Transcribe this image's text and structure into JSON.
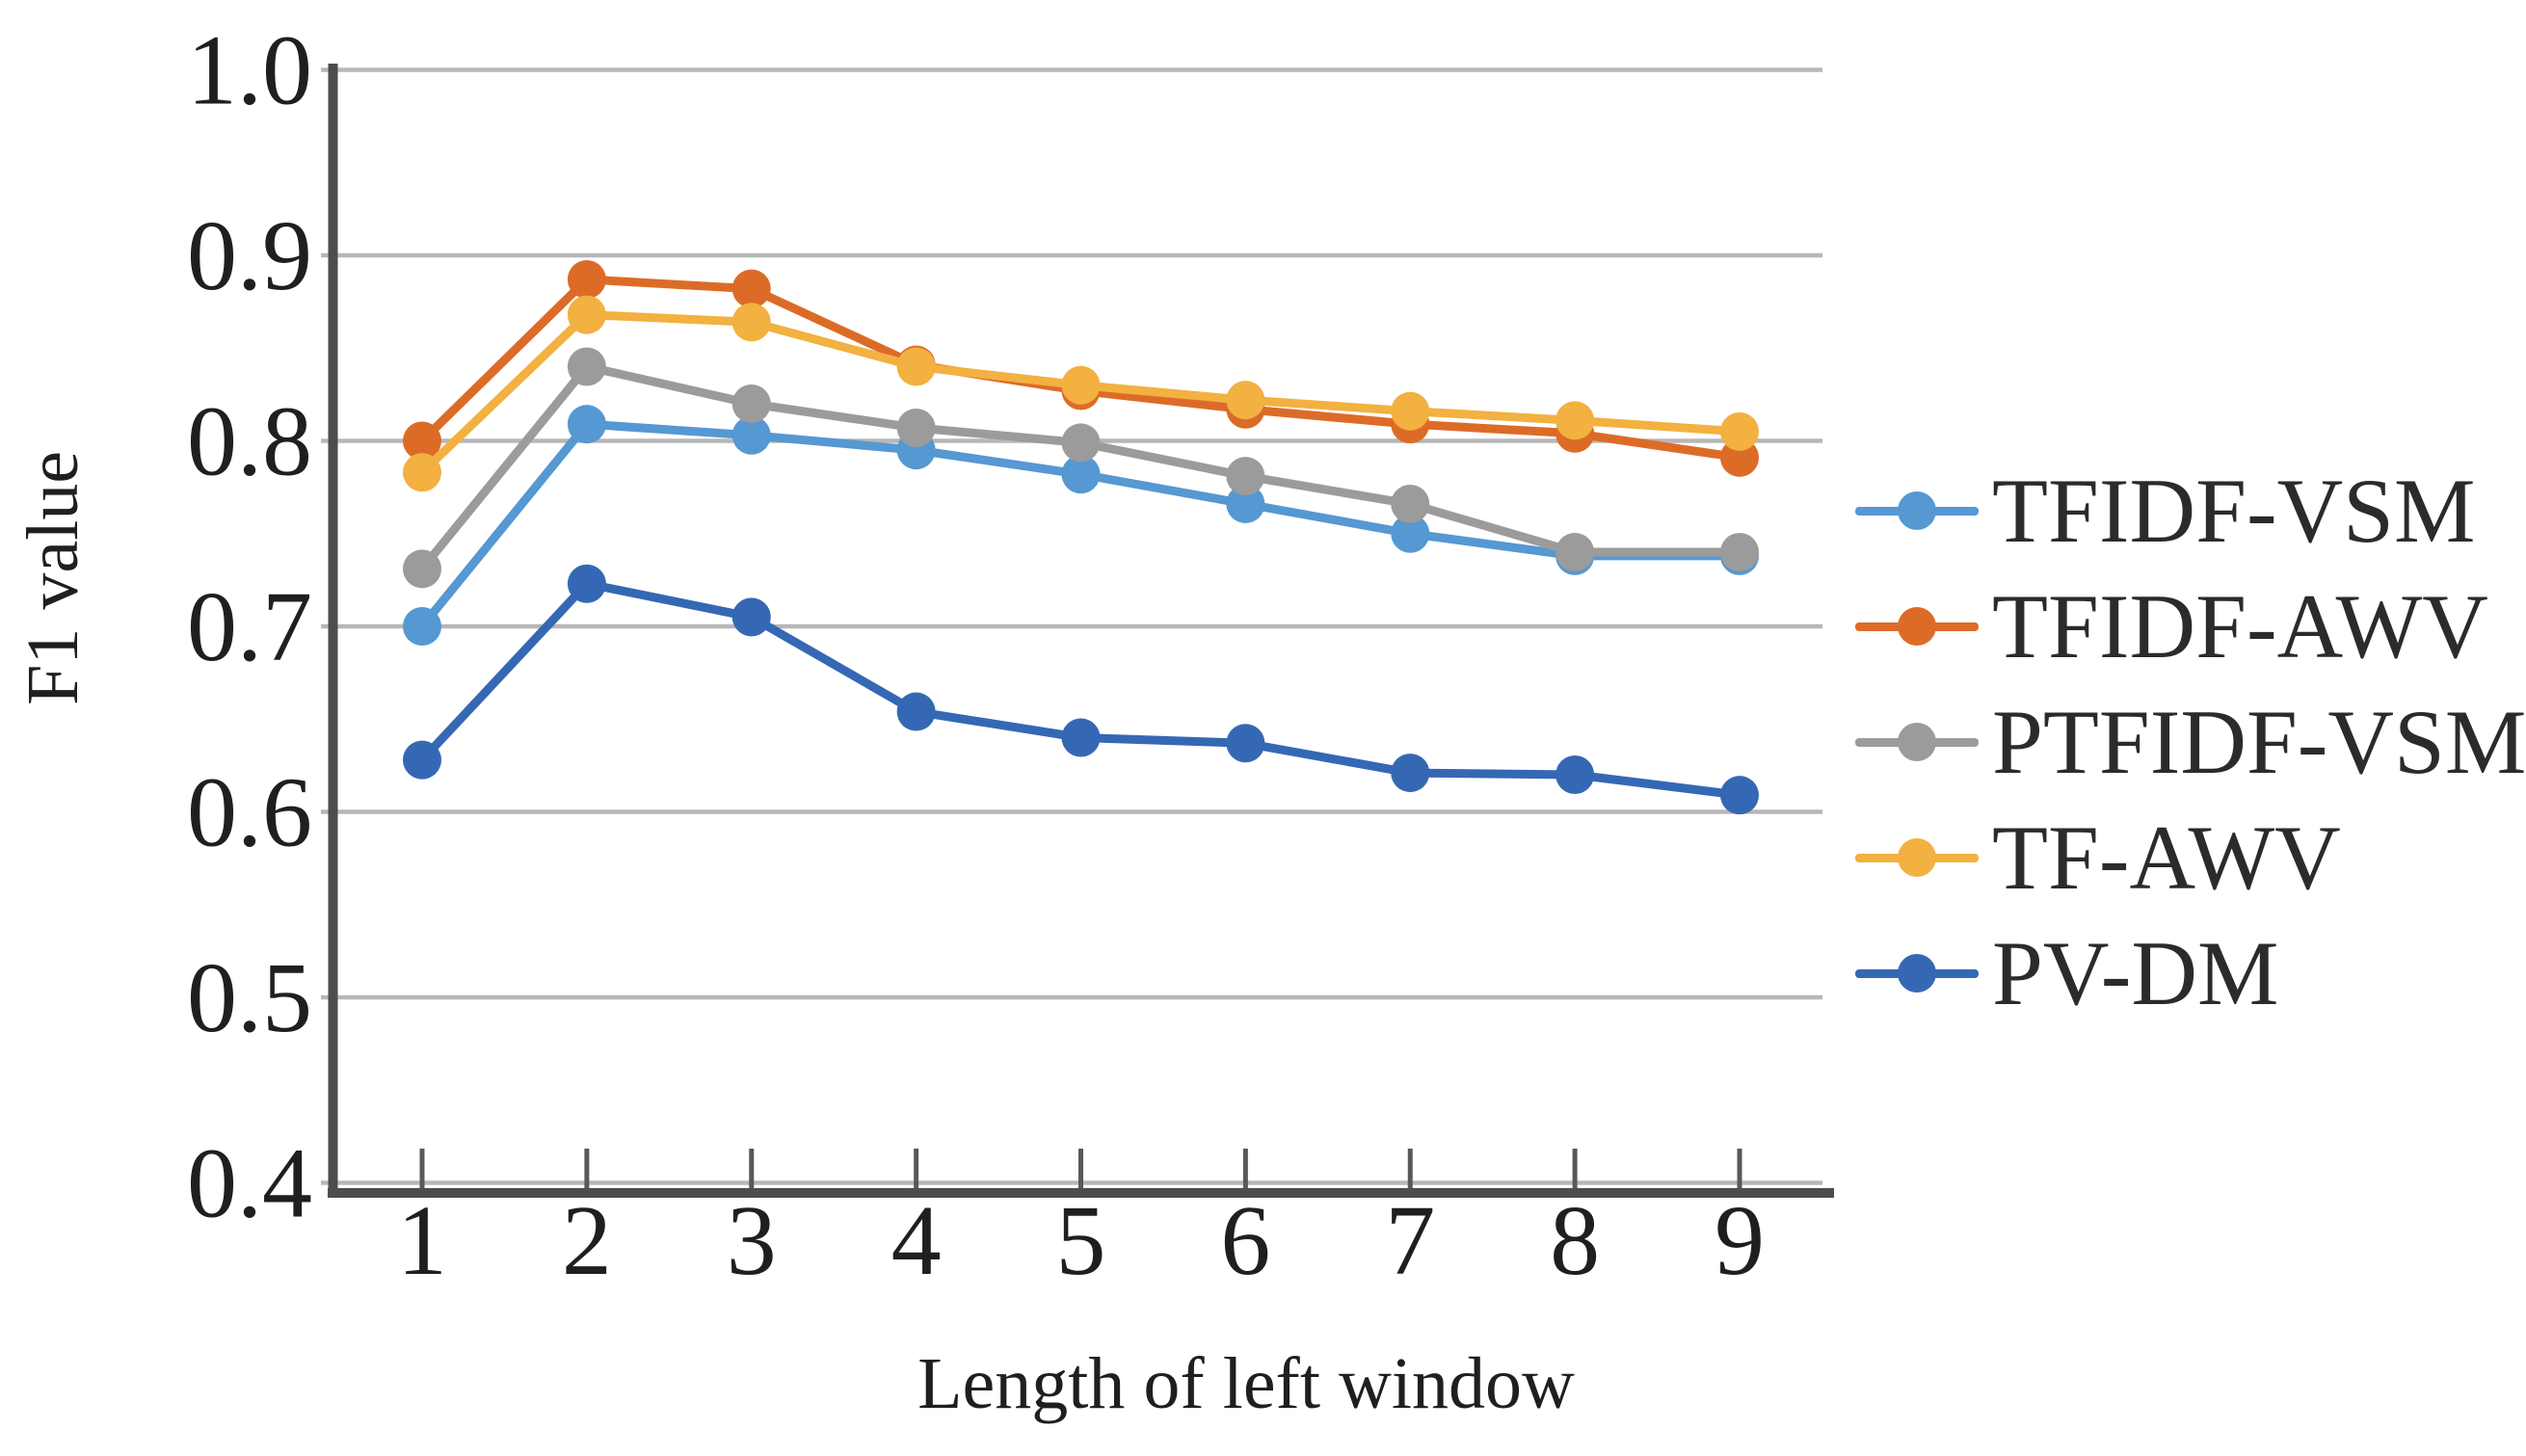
{
  "chart_data": {
    "type": "line",
    "title": "",
    "xlabel": "Length of left window",
    "ylabel": "F1 value",
    "x": [
      1,
      2,
      3,
      4,
      5,
      6,
      7,
      8,
      9
    ],
    "x_tick_labels": [
      "1",
      "2",
      "3",
      "4",
      "5",
      "6",
      "7",
      "8",
      "9"
    ],
    "y_tick_labels": [
      "0.4",
      "0.5",
      "0.6",
      "0.7",
      "0.8",
      "0.9",
      "1.0"
    ],
    "y_ticks": [
      0.4,
      0.5,
      0.6,
      0.7,
      0.8,
      0.9,
      1.0
    ],
    "ylim": [
      0.4,
      1.0
    ],
    "grid": true,
    "legend_position": "right",
    "axis_color": "#4d4d4d",
    "grid_color": "#b7b7b7",
    "text_color": "#1f1f1f",
    "series": [
      {
        "name": "TFIDF-VSM",
        "color": "#5598D2",
        "values": [
          0.7,
          0.809,
          0.803,
          0.795,
          0.782,
          0.766,
          0.75,
          0.738,
          0.738
        ]
      },
      {
        "name": "TFIDF-AWV",
        "color": "#DD6B28",
        "values": [
          0.8,
          0.887,
          0.882,
          0.841,
          0.827,
          0.817,
          0.809,
          0.804,
          0.791
        ]
      },
      {
        "name": "PTFIDF-VSM",
        "color": "#9B9B9B",
        "values": [
          0.731,
          0.84,
          0.82,
          0.807,
          0.799,
          0.781,
          0.766,
          0.74,
          0.74
        ]
      },
      {
        "name": "TF-AWV",
        "color": "#F2B140",
        "values": [
          0.783,
          0.868,
          0.864,
          0.84,
          0.83,
          0.822,
          0.816,
          0.811,
          0.805
        ]
      },
      {
        "name": "PV-DM",
        "color": "#3568B4",
        "values": [
          0.628,
          0.723,
          0.705,
          0.654,
          0.64,
          0.637,
          0.621,
          0.62,
          0.609
        ]
      }
    ]
  }
}
